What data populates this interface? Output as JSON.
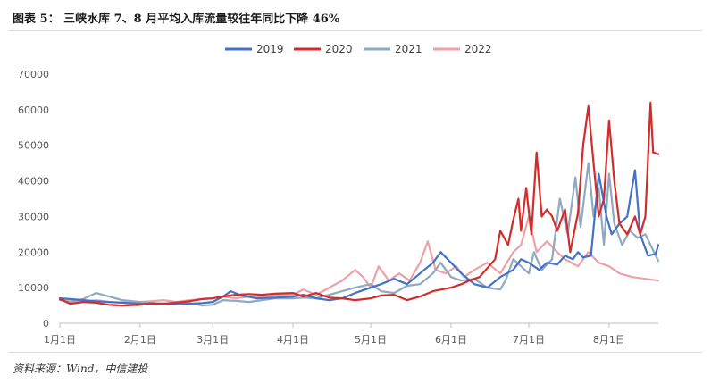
{
  "header": {
    "title": "图表 5：   三峡水库 7、8 月平均入库流量较往年同比下降 46%"
  },
  "footer": {
    "source": "资料来源：Wind，中信建投"
  },
  "chart_data": {
    "type": "line",
    "x_axis_type": "date",
    "x_range": [
      "01-01",
      "08-20"
    ],
    "ylim": [
      0,
      70000
    ],
    "y_ticks": [
      0,
      10000,
      20000,
      30000,
      40000,
      50000,
      60000,
      70000
    ],
    "x_ticks": [
      {
        "date": "01-01",
        "label": "1月1日"
      },
      {
        "date": "02-01",
        "label": "2月1日"
      },
      {
        "date": "03-01",
        "label": "3月1日"
      },
      {
        "date": "04-01",
        "label": "4月1日"
      },
      {
        "date": "05-01",
        "label": "5月1日"
      },
      {
        "date": "06-01",
        "label": "6月1日"
      },
      {
        "date": "07-01",
        "label": "7月1日"
      },
      {
        "date": "08-01",
        "label": "8月1日"
      }
    ],
    "grid": false,
    "legend": "top-center",
    "series": [
      {
        "name": "2019",
        "color": "#4472c4",
        "points": [
          [
            "01-01",
            7000
          ],
          [
            "01-05",
            6800
          ],
          [
            "01-10",
            6500
          ],
          [
            "01-15",
            6200
          ],
          [
            "01-20",
            6000
          ],
          [
            "01-25",
            5800
          ],
          [
            "02-01",
            5500
          ],
          [
            "02-05",
            5400
          ],
          [
            "02-10",
            5600
          ],
          [
            "02-15",
            5300
          ],
          [
            "02-20",
            5500
          ],
          [
            "02-25",
            5700
          ],
          [
            "03-01",
            6000
          ],
          [
            "03-05",
            7500
          ],
          [
            "03-08",
            9000
          ],
          [
            "03-12",
            7800
          ],
          [
            "03-18",
            7000
          ],
          [
            "03-25",
            7200
          ],
          [
            "04-01",
            7500
          ],
          [
            "04-05",
            8000
          ],
          [
            "04-10",
            7000
          ],
          [
            "04-15",
            6500
          ],
          [
            "04-20",
            7000
          ],
          [
            "04-25",
            8500
          ],
          [
            "05-01",
            10000
          ],
          [
            "05-05",
            11000
          ],
          [
            "05-10",
            12500
          ],
          [
            "05-15",
            11000
          ],
          [
            "05-20",
            14000
          ],
          [
            "05-25",
            17000
          ],
          [
            "05-28",
            20000
          ],
          [
            "06-01",
            17000
          ],
          [
            "06-05",
            14000
          ],
          [
            "06-10",
            11000
          ],
          [
            "06-15",
            10000
          ],
          [
            "06-20",
            13000
          ],
          [
            "06-25",
            15000
          ],
          [
            "06-28",
            18000
          ],
          [
            "07-01",
            17000
          ],
          [
            "07-05",
            15000
          ],
          [
            "07-08",
            17000
          ],
          [
            "07-12",
            16500
          ],
          [
            "07-15",
            19000
          ],
          [
            "07-18",
            18000
          ],
          [
            "07-20",
            20000
          ],
          [
            "07-22",
            18500
          ],
          [
            "07-25",
            19000
          ],
          [
            "07-28",
            42000
          ],
          [
            "07-31",
            30000
          ],
          [
            "08-02",
            25000
          ],
          [
            "08-05",
            28000
          ],
          [
            "08-08",
            30000
          ],
          [
            "08-11",
            43000
          ],
          [
            "08-13",
            25000
          ],
          [
            "08-16",
            19000
          ],
          [
            "08-19",
            19500
          ],
          [
            "08-20",
            22000
          ]
        ]
      },
      {
        "name": "2020",
        "color": "#d42b2b",
        "points": [
          [
            "01-01",
            6800
          ],
          [
            "01-05",
            5500
          ],
          [
            "01-10",
            6000
          ],
          [
            "01-15",
            5800
          ],
          [
            "01-20",
            5200
          ],
          [
            "01-25",
            5000
          ],
          [
            "02-01",
            5200
          ],
          [
            "02-05",
            5600
          ],
          [
            "02-10",
            5400
          ],
          [
            "02-15",
            5800
          ],
          [
            "02-20",
            6200
          ],
          [
            "02-25",
            6800
          ],
          [
            "03-01",
            7000
          ],
          [
            "03-05",
            7500
          ],
          [
            "03-10",
            8000
          ],
          [
            "03-15",
            8200
          ],
          [
            "03-20",
            8000
          ],
          [
            "03-25",
            8300
          ],
          [
            "04-01",
            8500
          ],
          [
            "04-05",
            7500
          ],
          [
            "04-10",
            8500
          ],
          [
            "04-15",
            7200
          ],
          [
            "04-20",
            7000
          ],
          [
            "04-25",
            6500
          ],
          [
            "05-01",
            7000
          ],
          [
            "05-05",
            7800
          ],
          [
            "05-10",
            8000
          ],
          [
            "05-15",
            6500
          ],
          [
            "05-20",
            7500
          ],
          [
            "05-25",
            9000
          ],
          [
            "06-01",
            10000
          ],
          [
            "06-05",
            11000
          ],
          [
            "06-08",
            12000
          ],
          [
            "06-12",
            13000
          ],
          [
            "06-15",
            15500
          ],
          [
            "06-18",
            18000
          ],
          [
            "06-20",
            26000
          ],
          [
            "06-23",
            22000
          ],
          [
            "06-25",
            29000
          ],
          [
            "06-27",
            35000
          ],
          [
            "06-28",
            26000
          ],
          [
            "06-30",
            38000
          ],
          [
            "07-02",
            25000
          ],
          [
            "07-04",
            48000
          ],
          [
            "07-06",
            30000
          ],
          [
            "07-08",
            32000
          ],
          [
            "07-10",
            30000
          ],
          [
            "07-12",
            26000
          ],
          [
            "07-15",
            32000
          ],
          [
            "07-17",
            20000
          ],
          [
            "07-20",
            31000
          ],
          [
            "07-22",
            50000
          ],
          [
            "07-24",
            61000
          ],
          [
            "07-26",
            45000
          ],
          [
            "07-28",
            30000
          ],
          [
            "07-30",
            35000
          ],
          [
            "08-01",
            57000
          ],
          [
            "08-03",
            40000
          ],
          [
            "08-05",
            28000
          ],
          [
            "08-08",
            25000
          ],
          [
            "08-11",
            30000
          ],
          [
            "08-13",
            25000
          ],
          [
            "08-15",
            30000
          ],
          [
            "08-17",
            62000
          ],
          [
            "08-18",
            48000
          ],
          [
            "08-20",
            47500
          ]
        ]
      },
      {
        "name": "2021",
        "color": "#8faabe",
        "points": [
          [
            "01-01",
            6500
          ],
          [
            "01-05",
            6000
          ],
          [
            "01-10",
            6800
          ],
          [
            "01-15",
            8500
          ],
          [
            "01-20",
            7500
          ],
          [
            "01-25",
            6500
          ],
          [
            "02-01",
            6000
          ],
          [
            "02-05",
            5800
          ],
          [
            "02-10",
            5500
          ],
          [
            "02-15",
            6000
          ],
          [
            "02-20",
            5700
          ],
          [
            "02-25",
            5000
          ],
          [
            "03-01",
            5200
          ],
          [
            "03-05",
            6500
          ],
          [
            "03-10",
            6300
          ],
          [
            "03-15",
            6000
          ],
          [
            "03-20",
            6500
          ],
          [
            "03-25",
            7000
          ],
          [
            "04-01",
            7000
          ],
          [
            "04-05",
            7200
          ],
          [
            "04-10",
            7000
          ],
          [
            "04-15",
            8000
          ],
          [
            "04-20",
            9000
          ],
          [
            "04-25",
            10000
          ],
          [
            "05-01",
            11000
          ],
          [
            "05-05",
            9000
          ],
          [
            "05-10",
            8500
          ],
          [
            "05-15",
            10500
          ],
          [
            "05-20",
            11000
          ],
          [
            "05-25",
            14000
          ],
          [
            "05-28",
            17000
          ],
          [
            "06-01",
            13000
          ],
          [
            "06-05",
            12000
          ],
          [
            "06-10",
            12500
          ],
          [
            "06-15",
            10000
          ],
          [
            "06-20",
            9500
          ],
          [
            "06-22",
            12000
          ],
          [
            "06-25",
            18000
          ],
          [
            "06-28",
            16000
          ],
          [
            "07-01",
            14000
          ],
          [
            "07-03",
            20000
          ],
          [
            "07-06",
            15000
          ],
          [
            "07-10",
            18000
          ],
          [
            "07-13",
            35000
          ],
          [
            "07-16",
            25000
          ],
          [
            "07-19",
            41000
          ],
          [
            "07-21",
            27000
          ],
          [
            "07-24",
            45000
          ],
          [
            "07-26",
            30000
          ],
          [
            "07-28",
            38000
          ],
          [
            "07-30",
            22000
          ],
          [
            "08-01",
            42000
          ],
          [
            "08-03",
            28000
          ],
          [
            "08-06",
            22000
          ],
          [
            "08-09",
            26000
          ],
          [
            "08-12",
            24000
          ],
          [
            "08-15",
            25000
          ],
          [
            "08-17",
            22000
          ],
          [
            "08-20",
            17500
          ]
        ]
      },
      {
        "name": "2022",
        "color": "#f0a0a8",
        "points": [
          [
            "01-01",
            7000
          ],
          [
            "01-05",
            6500
          ],
          [
            "01-10",
            6000
          ],
          [
            "01-15",
            6500
          ],
          [
            "01-20",
            6000
          ],
          [
            "01-25",
            5800
          ],
          [
            "02-01",
            6000
          ],
          [
            "02-05",
            6200
          ],
          [
            "02-10",
            6500
          ],
          [
            "02-15",
            6000
          ],
          [
            "02-20",
            6500
          ],
          [
            "02-25",
            6800
          ],
          [
            "03-01",
            7000
          ],
          [
            "03-05",
            7500
          ],
          [
            "03-10",
            7000
          ],
          [
            "03-15",
            7500
          ],
          [
            "03-20",
            7200
          ],
          [
            "03-25",
            7800
          ],
          [
            "04-01",
            8000
          ],
          [
            "04-05",
            9500
          ],
          [
            "04-10",
            8000
          ],
          [
            "04-15",
            10000
          ],
          [
            "04-20",
            12000
          ],
          [
            "04-25",
            15000
          ],
          [
            "04-28",
            13000
          ],
          [
            "05-01",
            10000
          ],
          [
            "05-04",
            16000
          ],
          [
            "05-08",
            12000
          ],
          [
            "05-12",
            14000
          ],
          [
            "05-16",
            12000
          ],
          [
            "05-20",
            17000
          ],
          [
            "05-23",
            23000
          ],
          [
            "05-26",
            15000
          ],
          [
            "05-30",
            14000
          ],
          [
            "06-03",
            16000
          ],
          [
            "06-06",
            13000
          ],
          [
            "06-10",
            15000
          ],
          [
            "06-15",
            17000
          ],
          [
            "06-20",
            14000
          ],
          [
            "06-25",
            20000
          ],
          [
            "06-28",
            22000
          ],
          [
            "07-01",
            30000
          ],
          [
            "07-04",
            20000
          ],
          [
            "07-08",
            23000
          ],
          [
            "07-12",
            20000
          ],
          [
            "07-15",
            18000
          ],
          [
            "07-20",
            16000
          ],
          [
            "07-24",
            20000
          ],
          [
            "07-28",
            17000
          ],
          [
            "08-01",
            16000
          ],
          [
            "08-05",
            14000
          ],
          [
            "08-10",
            13000
          ],
          [
            "08-15",
            12500
          ],
          [
            "08-20",
            12000
          ]
        ]
      }
    ]
  }
}
